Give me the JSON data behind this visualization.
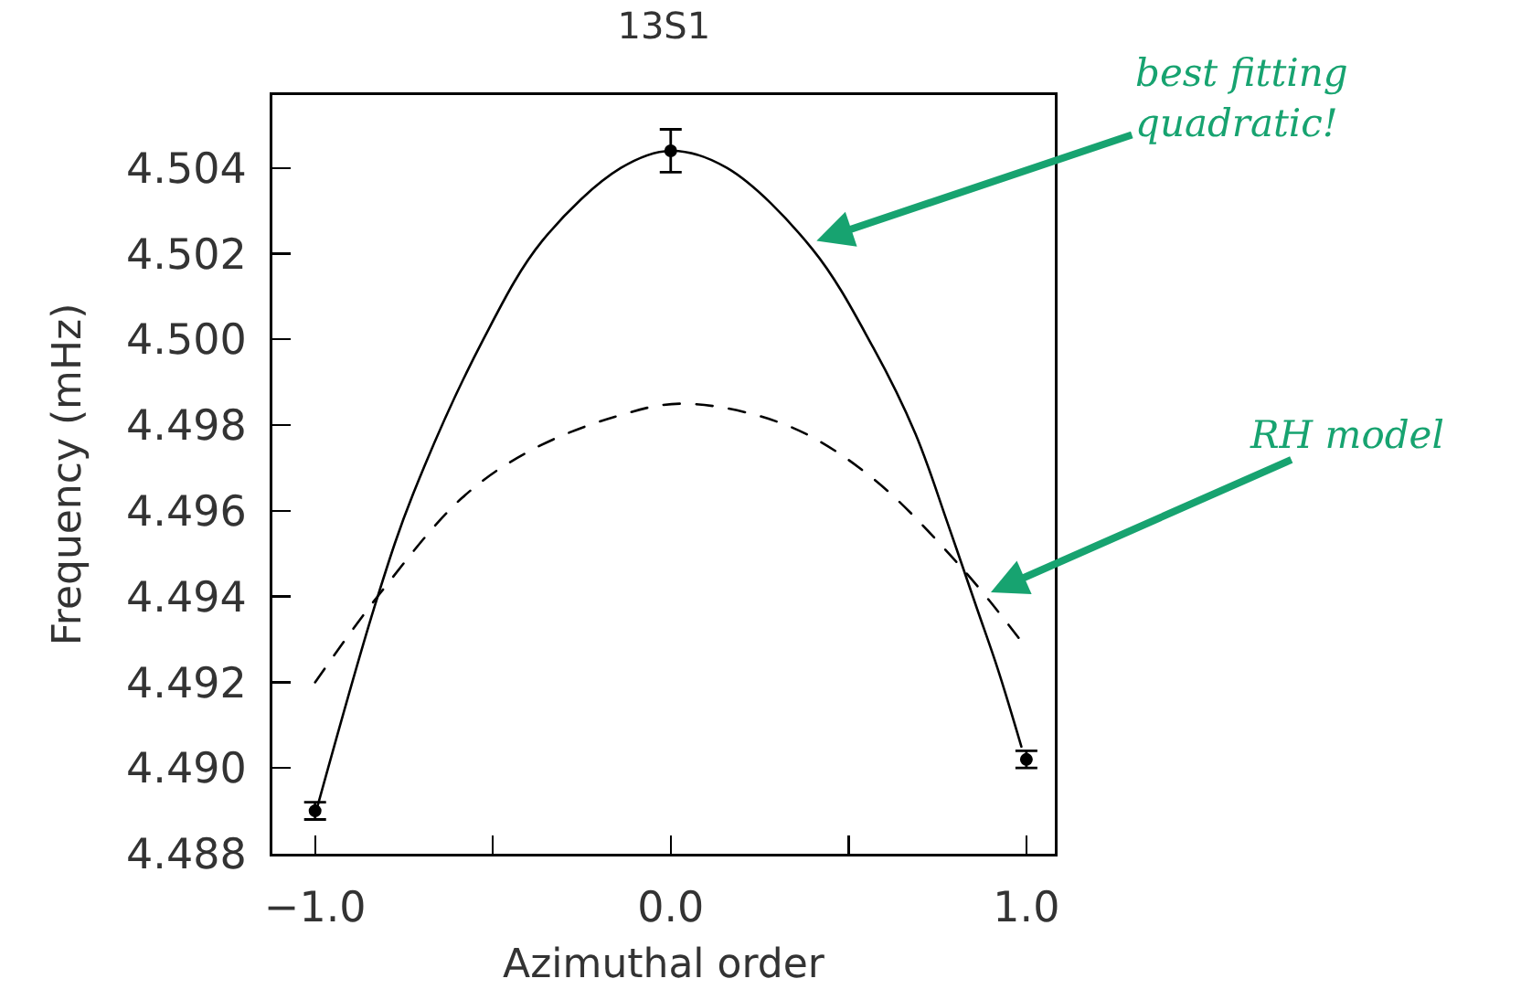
{
  "chart_data": {
    "type": "line",
    "title": "13S1",
    "xlabel": "Azimuthal order",
    "ylabel": "Frequency (mHz)",
    "xlim": [
      -1.12,
      1.08
    ],
    "xticks": [
      {
        "value": -1,
        "label": "−1.0"
      },
      {
        "value": -0.5,
        "label": null
      },
      {
        "value": 0,
        "label": "0.0"
      },
      {
        "value": 0.5,
        "label": null
      },
      {
        "value": 1,
        "label": "1.0"
      }
    ],
    "ylim": [
      4.488,
      4.5057
    ],
    "yticks": [
      4.488,
      {
        "value": 4.49,
        "label": "4.490"
      },
      4.492,
      4.494,
      4.496,
      4.498,
      {
        "value": 4.5,
        "label": "4.500"
      },
      4.502,
      4.504
    ],
    "series": [
      {
        "type": "scatter",
        "color": "#000000",
        "x": [
          -1,
          0,
          1
        ],
        "values": [
          4.489,
          4.5044,
          4.4902
        ],
        "errors": [
          0.0002,
          0.0005,
          0.0002
        ]
      },
      {
        "color": "#000000",
        "line_style": "solid",
        "x": [
          -1,
          -0.824,
          -0.724,
          -0.527,
          -0.361,
          -0.14,
          0,
          0.158,
          0.399,
          0.57,
          0.688,
          0.779,
          0.862,
          0.92,
          0.986
        ],
        "values": [
          4.4889,
          4.494,
          4.4964,
          4.5,
          4.5023,
          4.504,
          4.5044,
          4.504,
          4.5021,
          4.4998,
          4.4978,
          4.4957,
          4.4937,
          4.4923,
          4.4905
        ]
      },
      {
        "color": "#000000",
        "line_style": "dashed",
        "x": [
          -1,
          -0.815,
          -0.587,
          -0.396,
          -0.155,
          0.035,
          0.325,
          0.562,
          0.815,
          0.991
        ],
        "values": [
          4.492,
          4.4941,
          4.4963,
          4.4974,
          4.4982,
          4.4985,
          4.498,
          4.4968,
          4.4947,
          4.4929
        ]
      }
    ],
    "annotations": [
      {
        "text": "best fitting\nquadratic!",
        "x": 0.41,
        "y": 4.5023
      },
      {
        "text": "RH model",
        "x": 0.9,
        "y": 4.4941
      }
    ]
  }
}
